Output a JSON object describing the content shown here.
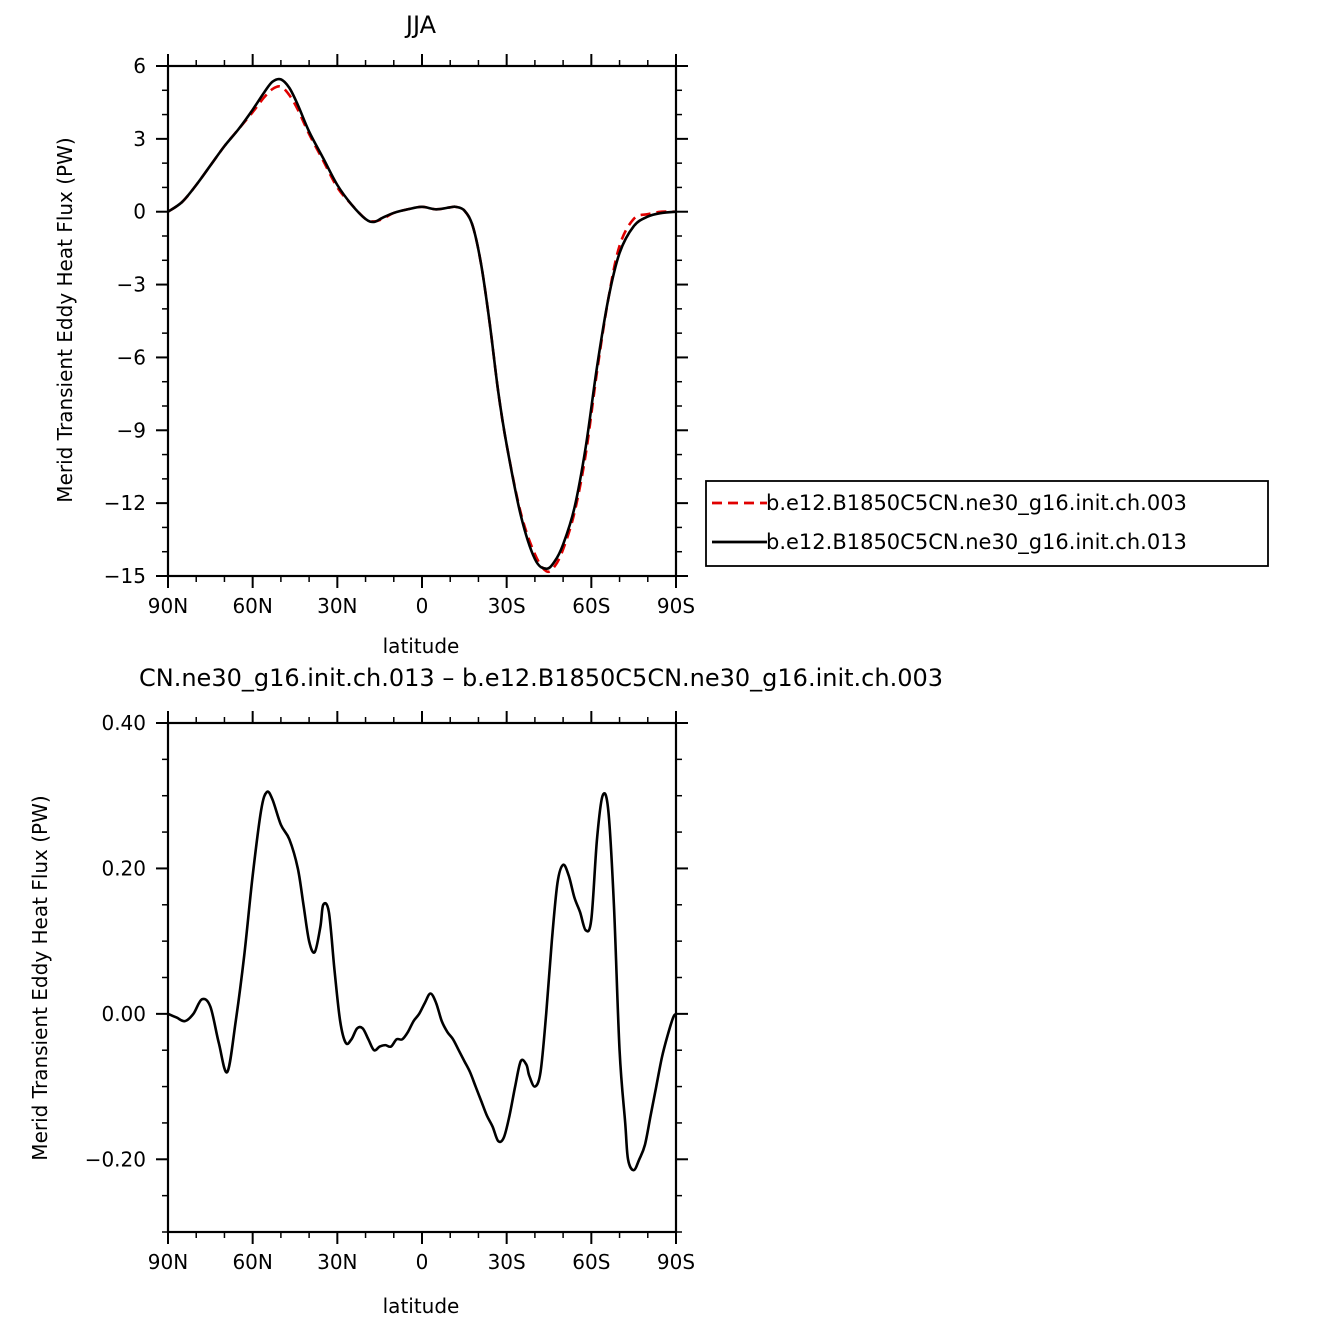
{
  "chart_data": [
    {
      "type": "line",
      "title": "JJA",
      "xlabel": "latitude",
      "ylabel": "Merid Transient Eddy Heat Flux (PW)",
      "xlim": [
        90,
        -90
      ],
      "ylim": [
        -15,
        6
      ],
      "x_ticks": [
        90,
        60,
        30,
        0,
        -30,
        -60,
        -90
      ],
      "x_tick_labels": [
        "90N",
        "60N",
        "30N",
        "0",
        "30S",
        "60S",
        "90S"
      ],
      "y_ticks": [
        6,
        3,
        0,
        -3,
        -6,
        -9,
        -12,
        -15
      ],
      "y_tick_labels": [
        "6",
        "3",
        "0",
        "−3",
        "−6",
        "−9",
        "−12",
        "−15"
      ],
      "grid": false,
      "legend_position": "right",
      "series": [
        {
          "name": "b.e12.B1850C5CN.ne30_g16.init.ch.003",
          "color": "#e00000",
          "dash": "dashed",
          "x": [
            90,
            85,
            80,
            75,
            70,
            65,
            60,
            56,
            53,
            50,
            47,
            44,
            40,
            35,
            30,
            25,
            20,
            17,
            14,
            10,
            5,
            0,
            -5,
            -10,
            -12,
            -15,
            -18,
            -21,
            -24,
            -27,
            -30,
            -35,
            -40,
            -44,
            -47,
            -50,
            -54,
            -58,
            -62,
            -66,
            -70,
            -75,
            -80,
            -85,
            -90
          ],
          "y": [
            0,
            0.4,
            1.1,
            1.9,
            2.7,
            3.4,
            4.1,
            4.7,
            5.05,
            5.15,
            4.8,
            4.2,
            3.2,
            2.1,
            1.0,
            0.3,
            -0.3,
            -0.4,
            -0.3,
            -0.05,
            0.1,
            0.2,
            0.1,
            0.18,
            0.2,
            0.05,
            -0.6,
            -2.2,
            -4.6,
            -7.4,
            -9.6,
            -12.4,
            -14.1,
            -14.8,
            -14.6,
            -13.9,
            -12.4,
            -10.0,
            -6.6,
            -3.6,
            -1.4,
            -0.3,
            -0.1,
            0.0,
            0.0
          ]
        },
        {
          "name": "b.e12.B1850C5CN.ne30_g16.init.ch.013",
          "color": "#000000",
          "dash": "solid",
          "x": [
            90,
            85,
            80,
            75,
            70,
            65,
            60,
            56,
            53,
            50,
            47,
            44,
            40,
            35,
            30,
            25,
            20,
            17,
            14,
            10,
            5,
            0,
            -5,
            -10,
            -12,
            -15,
            -18,
            -21,
            -24,
            -27,
            -30,
            -35,
            -40,
            -44,
            -47,
            -50,
            -54,
            -58,
            -62,
            -66,
            -70,
            -75,
            -80,
            -85,
            -90
          ],
          "y": [
            0,
            0.4,
            1.1,
            1.9,
            2.7,
            3.4,
            4.2,
            4.9,
            5.35,
            5.45,
            5.1,
            4.4,
            3.3,
            2.2,
            1.1,
            0.3,
            -0.3,
            -0.42,
            -0.25,
            -0.05,
            0.1,
            0.2,
            0.1,
            0.18,
            0.2,
            0.05,
            -0.6,
            -2.2,
            -4.6,
            -7.4,
            -9.6,
            -12.5,
            -14.3,
            -14.7,
            -14.4,
            -13.7,
            -12.2,
            -9.7,
            -6.4,
            -3.6,
            -1.7,
            -0.6,
            -0.2,
            -0.05,
            0.0
          ]
        }
      ]
    },
    {
      "type": "line",
      "title": "CN.ne30_g16.init.ch.013 – b.e12.B1850C5CN.ne30_g16.init.ch.003",
      "xlabel": "latitude",
      "ylabel": "Merid Transient Eddy Heat Flux (PW)",
      "xlim": [
        90,
        -90
      ],
      "ylim": [
        -0.3,
        0.4
      ],
      "x_ticks": [
        90,
        60,
        30,
        0,
        -30,
        -60,
        -90
      ],
      "x_tick_labels": [
        "90N",
        "60N",
        "30N",
        "0",
        "30S",
        "60S",
        "90S"
      ],
      "y_ticks": [
        0.4,
        0.2,
        0.0,
        -0.2
      ],
      "y_tick_labels": [
        "0.40",
        "0.20",
        "0.00",
        "−0.20"
      ],
      "grid": false,
      "series": [
        {
          "color": "#000000",
          "dash": "solid",
          "x": [
            90,
            87,
            84,
            81,
            78,
            75,
            72,
            69,
            66,
            63,
            60,
            57,
            55,
            53,
            50,
            47,
            44,
            42,
            40,
            38,
            36,
            35,
            33,
            31,
            29,
            27,
            25,
            23,
            21,
            19,
            17,
            15,
            13,
            11,
            9,
            7,
            5,
            3,
            1,
            -1,
            -3,
            -5,
            -7,
            -9,
            -11,
            -13,
            -15,
            -17,
            -19,
            -21,
            -23,
            -25,
            -27,
            -29,
            -31,
            -33,
            -35,
            -37,
            -38,
            -40,
            -42,
            -44,
            -46,
            -48,
            -50,
            -52,
            -54,
            -56,
            -58,
            -60,
            -62,
            -64,
            -66,
            -68,
            -70,
            -72,
            -73,
            -75,
            -77,
            -79,
            -81,
            -83,
            -85,
            -87,
            -89,
            -90
          ],
          "y": [
            0.0,
            -0.005,
            -0.01,
            0.0,
            0.02,
            0.01,
            -0.04,
            -0.08,
            -0.01,
            0.08,
            0.19,
            0.28,
            0.305,
            0.295,
            0.26,
            0.24,
            0.2,
            0.15,
            0.1,
            0.085,
            0.12,
            0.15,
            0.14,
            0.06,
            -0.01,
            -0.04,
            -0.035,
            -0.02,
            -0.02,
            -0.035,
            -0.05,
            -0.045,
            -0.043,
            -0.045,
            -0.035,
            -0.035,
            -0.025,
            -0.01,
            0.0,
            0.015,
            0.028,
            0.015,
            -0.01,
            -0.025,
            -0.035,
            -0.05,
            -0.065,
            -0.08,
            -0.1,
            -0.12,
            -0.14,
            -0.155,
            -0.175,
            -0.17,
            -0.14,
            -0.1,
            -0.065,
            -0.07,
            -0.085,
            -0.1,
            -0.08,
            0.0,
            0.1,
            0.18,
            0.205,
            0.19,
            0.16,
            0.14,
            0.115,
            0.13,
            0.24,
            0.3,
            0.28,
            0.15,
            -0.05,
            -0.15,
            -0.2,
            -0.215,
            -0.2,
            -0.18,
            -0.14,
            -0.1,
            -0.06,
            -0.03,
            -0.005,
            0.0
          ]
        }
      ]
    }
  ]
}
